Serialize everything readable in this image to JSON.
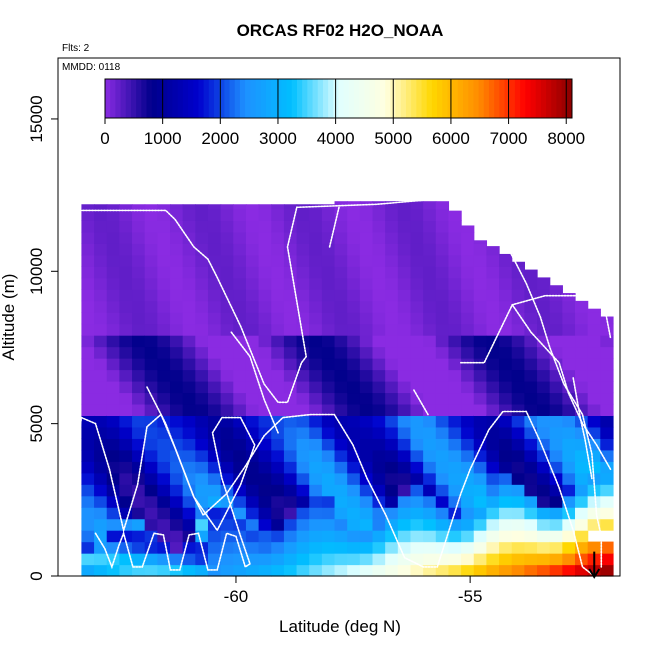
{
  "chart_data": {
    "type": "heatmap",
    "title": "ORCAS RF02 H2O_NOAA",
    "xlabel": "Latitude (deg N)",
    "ylabel": "Altitude (m)",
    "flights_note": "Flts: 2",
    "date_note": "MMDD: 0118",
    "xlim": [
      -63.8,
      -51.8
    ],
    "ylim": [
      0,
      17000
    ],
    "x_ticks": [
      -60,
      -55
    ],
    "y_ticks": [
      0,
      5000,
      10000,
      15000
    ],
    "x_tick_labels": [
      "-60",
      "-55"
    ],
    "y_tick_labels": [
      "0",
      "5000",
      "10000",
      "15000"
    ],
    "colorbar": {
      "range": [
        0,
        8100
      ],
      "ticks": [
        0,
        1000,
        2000,
        3000,
        4000,
        5000,
        6000,
        7000,
        8000
      ],
      "tick_labels": [
        "0",
        "1000",
        "2000",
        "3000",
        "4000",
        "5000",
        "6000",
        "7000",
        "8000"
      ],
      "colors": [
        "#8a2be2",
        "#00008b",
        "#0000cd",
        "#1e90ff",
        "#00bfff",
        "#e0ffff",
        "#ffffe0",
        "#ffd700",
        "#ff8c00",
        "#ff0000",
        "#8b0000"
      ]
    },
    "track": [
      [
        -63.0,
        1400
      ],
      [
        -62.8,
        900
      ],
      [
        -62.65,
        300
      ],
      [
        -62.5,
        1000
      ],
      [
        -62.4,
        1400
      ],
      [
        -62.2,
        300
      ],
      [
        -62.0,
        300
      ],
      [
        -61.75,
        1400
      ],
      [
        -61.55,
        1350
      ],
      [
        -61.4,
        200
      ],
      [
        -61.2,
        200
      ],
      [
        -61.0,
        1350
      ],
      [
        -60.8,
        1400
      ],
      [
        -60.6,
        200
      ],
      [
        -60.4,
        200
      ],
      [
        -60.2,
        1400
      ],
      [
        -60.0,
        1300
      ],
      [
        -59.8,
        300
      ],
      [
        -59.7,
        400
      ],
      [
        -59.9,
        1300
      ],
      [
        -60.3,
        3200
      ],
      [
        -60.5,
        4700
      ],
      [
        -60.3,
        5200
      ],
      [
        -59.9,
        5200
      ],
      [
        -59.6,
        4300
      ],
      [
        -59.9,
        3000
      ],
      [
        -60.4,
        1500
      ],
      [
        -60.9,
        2600
      ],
      [
        -61.3,
        4200
      ],
      [
        -61.6,
        5300
      ],
      [
        -61.9,
        4900
      ],
      [
        -62.1,
        3000
      ],
      [
        -62.4,
        1500
      ],
      [
        -62.7,
        3500
      ],
      [
        -63.0,
        5000
      ],
      [
        -63.3,
        5200
      ],
      [
        -63.5,
        3000
      ],
      [
        -63.7,
        1000
      ],
      [
        -63.7,
        500
      ]
    ],
    "track2": [
      [
        -63.4,
        12000
      ],
      [
        -62.5,
        12000
      ],
      [
        -61.5,
        12000
      ],
      [
        -61.3,
        11700
      ],
      [
        -60.9,
        10800
      ],
      [
        -60.6,
        10400
      ],
      [
        -60.4,
        9800
      ],
      [
        -59.9,
        8200
      ],
      [
        -59.4,
        6300
      ],
      [
        -59.1,
        5700
      ],
      [
        -58.9,
        5700
      ],
      [
        -58.6,
        7000
      ],
      [
        -58.5,
        7200
      ],
      [
        -58.9,
        10800
      ],
      [
        -58.7,
        12100
      ],
      [
        -57.0,
        12200
      ],
      [
        -55.5,
        12400
      ],
      [
        -55.0,
        12400
      ],
      [
        -54.7,
        11800
      ],
      [
        -54.2,
        10800
      ],
      [
        -53.8,
        9600
      ],
      [
        -53.5,
        8500
      ],
      [
        -53.3,
        7500
      ],
      [
        -53.0,
        6300
      ],
      [
        -52.6,
        5300
      ],
      [
        -52.4,
        4000
      ],
      [
        -52.3,
        2000
      ],
      [
        -52.2,
        1300
      ],
      [
        -52.2,
        300
      ]
    ],
    "track3": [
      [
        -61.9,
        6200
      ],
      [
        -61.5,
        5000
      ],
      [
        -61.2,
        3800
      ],
      [
        -60.9,
        2600
      ],
      [
        -60.7,
        2000
      ],
      [
        -60.2,
        2700
      ],
      [
        -59.8,
        3600
      ],
      [
        -59.4,
        4600
      ],
      [
        -59.0,
        5200
      ],
      [
        -58.4,
        5300
      ],
      [
        -57.9,
        5300
      ],
      [
        -57.5,
        4300
      ],
      [
        -57.2,
        3200
      ],
      [
        -56.8,
        2000
      ],
      [
        -56.4,
        600
      ],
      [
        -56.0,
        300
      ],
      [
        -55.7,
        300
      ],
      [
        -55.2,
        2700
      ],
      [
        -55.0,
        3500
      ],
      [
        -54.6,
        4800
      ],
      [
        -54.3,
        5400
      ],
      [
        -53.8,
        5400
      ],
      [
        -53.5,
        4400
      ],
      [
        -53.1,
        2900
      ],
      [
        -52.8,
        1500
      ],
      [
        -52.6,
        300
      ],
      [
        -52.35,
        0
      ]
    ],
    "track4": [
      [
        -60.1,
        8000
      ],
      [
        -59.7,
        7200
      ],
      [
        -59.4,
        5800
      ],
      [
        -59.1,
        4700
      ]
    ],
    "track5": [
      [
        -58.0,
        10800
      ],
      [
        -57.8,
        12100
      ]
    ],
    "track6": [
      [
        -56.2,
        6100
      ],
      [
        -55.9,
        5300
      ]
    ],
    "track7": [
      [
        -54.1,
        8900
      ],
      [
        -53.7,
        8000
      ],
      [
        -53.1,
        7000
      ],
      [
        -52.9,
        6000
      ],
      [
        -52.6,
        5000
      ],
      [
        -52.3,
        4300
      ],
      [
        -52.0,
        3500
      ]
    ],
    "track8": [
      [
        -55.2,
        7000
      ],
      [
        -54.7,
        7000
      ],
      [
        -54.1,
        8900
      ],
      [
        -53.4,
        9200
      ],
      [
        -52.6,
        9200
      ],
      [
        -52.2,
        9200
      ],
      [
        -52.1,
        8600
      ],
      [
        -52.0,
        7800
      ]
    ],
    "track9": [
      [
        -52.8,
        6500
      ],
      [
        -52.65,
        5200
      ],
      [
        -52.55,
        4500
      ],
      [
        -52.4,
        3200
      ]
    ],
    "arrow_lat": -52.35,
    "field_columns": 42,
    "field_rows": 34
  }
}
